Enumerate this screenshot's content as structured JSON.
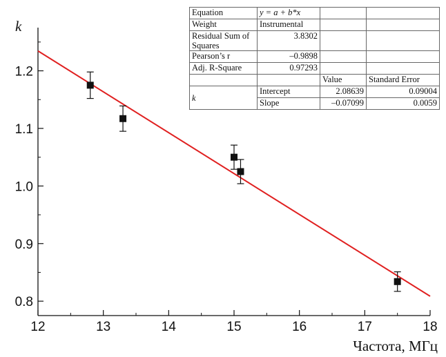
{
  "chart_data": {
    "type": "scatter",
    "ylabel": "k",
    "xlabel": "Частота, МГц",
    "xlim": [
      12,
      18
    ],
    "ylim": [
      0.775,
      1.275
    ],
    "x_ticks": [
      12,
      13,
      14,
      15,
      16,
      17,
      18
    ],
    "y_ticks": [
      "0.8",
      "0.9",
      "1.0",
      "1.1",
      "1.2"
    ],
    "y_tick_values": [
      0.8,
      0.9,
      1.0,
      1.1,
      1.2
    ],
    "colors": {
      "points": "#111111",
      "fit": "#e02020"
    },
    "points": [
      {
        "x": 12.8,
        "y": 1.175,
        "err": 0.023
      },
      {
        "x": 13.3,
        "y": 1.117,
        "err": 0.022
      },
      {
        "x": 15.0,
        "y": 1.05,
        "err": 0.021
      },
      {
        "x": 15.1,
        "y": 1.025,
        "err": 0.021
      },
      {
        "x": 17.5,
        "y": 0.834,
        "err": 0.017
      }
    ],
    "fit": {
      "intercept": 2.08639,
      "slope": -0.07099
    },
    "stats": {
      "equation_label": "Equation",
      "equation_value": "y = a + b*x",
      "weight_label": "Weight",
      "weight_value": "Instrumental",
      "rss_label": "Residual Sum of Squares",
      "rss_value": "3.8302",
      "pearson_label": "Pearson’s r",
      "pearson_value": "–0.9898",
      "adjr2_label": "Adj. R-Square",
      "adjr2_value": "0.97293",
      "value_header": "Value",
      "stderr_header": "Standard Error",
      "param_label": "k",
      "intercept_label": "Intercept",
      "intercept_value": "2.08639",
      "intercept_se": "0.09004",
      "slope_label": "Slope",
      "slope_value": "–0.07099",
      "slope_se": "0.0059"
    }
  }
}
